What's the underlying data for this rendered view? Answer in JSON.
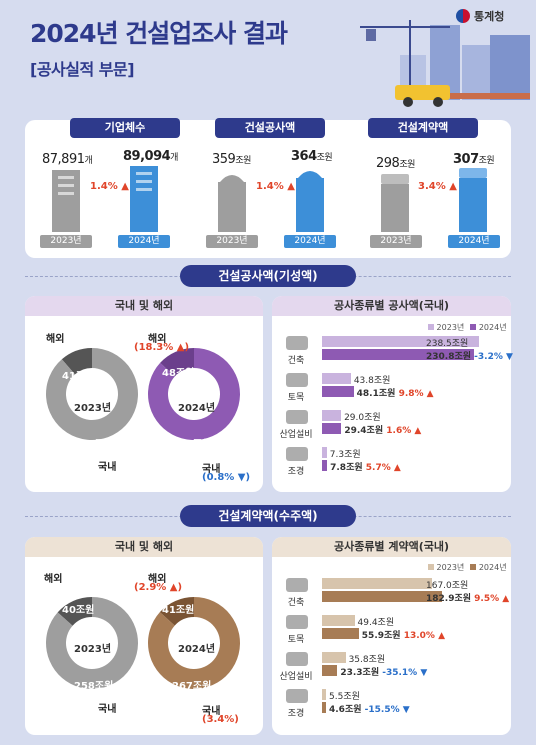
{
  "header": {
    "title": "2024년 건설업조사 결과",
    "subtitle": "[공사실적 부문]",
    "agency": "통계청"
  },
  "kpis": [
    {
      "label": "기업체수",
      "old_value": "87,891",
      "old_unit": "개",
      "new_value": "89,094",
      "new_unit": "개",
      "change": "1.4%",
      "year_old": "2023년",
      "year_new": "2024년"
    },
    {
      "label": "건설공사액",
      "old_value": "359",
      "old_unit": "조원",
      "new_value": "364",
      "new_unit": "조원",
      "change": "1.4%",
      "year_old": "2023년",
      "year_new": "2024년"
    },
    {
      "label": "건설계약액",
      "old_value": "298",
      "old_unit": "조원",
      "new_value": "307",
      "new_unit": "조원",
      "change": "3.4%",
      "year_old": "2023년",
      "year_new": "2024년"
    }
  ],
  "sections": {
    "construction": {
      "title": "건설공사액(기성액)",
      "donut_title": "국내 및 해외",
      "bar_title": "공사종류별 공사액(국내)",
      "legend": [
        "2023년",
        "2024년"
      ]
    },
    "contract": {
      "title": "건설계약액(수주액)",
      "donut_title": "국내 및 해외",
      "bar_title": "공사종류별 계약액(국내)",
      "legend": [
        "2023년",
        "2024년"
      ]
    }
  },
  "chart_data": [
    {
      "type": "pie",
      "id": "construction_2023",
      "center_label": "2023년",
      "slices": [
        {
          "label": "해외",
          "value": 41,
          "value_label": "41조원"
        },
        {
          "label": "국내",
          "value": 319,
          "value_label": "319조원"
        }
      ]
    },
    {
      "type": "pie",
      "id": "construction_2024",
      "center_label": "2024년",
      "slices": [
        {
          "label": "해외",
          "value": 48,
          "value_label": "48조원",
          "change": "(18.3%"
        },
        {
          "label": "국내",
          "value": 316,
          "value_label": "316조원",
          "change": "(0.8%"
        }
      ]
    },
    {
      "type": "bar",
      "id": "construction_by_type",
      "categories": [
        "건축",
        "토목",
        "산업설비",
        "조경"
      ],
      "series": [
        {
          "name": "2023년",
          "values": [
            238.5,
            43.8,
            29.0,
            7.3
          ]
        },
        {
          "name": "2024년",
          "values": [
            230.8,
            48.1,
            29.4,
            7.8
          ]
        }
      ],
      "value_labels_2023": [
        "238.5조원",
        "43.8조원",
        "29.0조원",
        "7.3조원"
      ],
      "value_labels_2024": [
        "230.8조원",
        "48.1조원",
        "29.4조원",
        "7.8조원"
      ],
      "changes": [
        "-3.2%",
        "9.8%",
        "1.6%",
        "5.7%"
      ],
      "xlim": [
        0,
        240
      ]
    },
    {
      "type": "pie",
      "id": "contract_2023",
      "center_label": "2023년",
      "slices": [
        {
          "label": "해외",
          "value": 40,
          "value_label": "40조원"
        },
        {
          "label": "국내",
          "value": 258,
          "value_label": "258조원"
        }
      ]
    },
    {
      "type": "pie",
      "id": "contract_2024",
      "center_label": "2024년",
      "slices": [
        {
          "label": "해외",
          "value": 41,
          "value_label": "41조원",
          "change": "(2.9%"
        },
        {
          "label": "국내",
          "value": 267,
          "value_label": "267조원",
          "change": "(3.4%)"
        }
      ]
    },
    {
      "type": "bar",
      "id": "contract_by_type",
      "categories": [
        "건축",
        "토목",
        "산업설비",
        "조경"
      ],
      "series": [
        {
          "name": "2023년",
          "values": [
            167.0,
            49.4,
            35.8,
            5.5
          ]
        },
        {
          "name": "2024년",
          "values": [
            182.9,
            55.9,
            23.3,
            4.6
          ]
        }
      ],
      "value_labels_2023": [
        "167.0조원",
        "49.4조원",
        "35.8조원",
        "5.5조원"
      ],
      "value_labels_2024": [
        "182.9조원",
        "55.9조원",
        "23.3조원",
        "4.6조원"
      ],
      "changes": [
        "9.5%",
        "13.0%",
        "-35.1%",
        "-15.5%"
      ],
      "xlim": [
        0,
        240
      ]
    }
  ],
  "colors": {
    "navy": "#2e3a8c",
    "purple": "#8e5ab3",
    "purple_light": "#c9b3de",
    "brown": "#a77c55",
    "brown_light": "#d7c4ac",
    "gray": "#9e9e9e",
    "blue": "#3d8fd8",
    "red": "#e0452a",
    "blue_down": "#2a6fc9"
  }
}
